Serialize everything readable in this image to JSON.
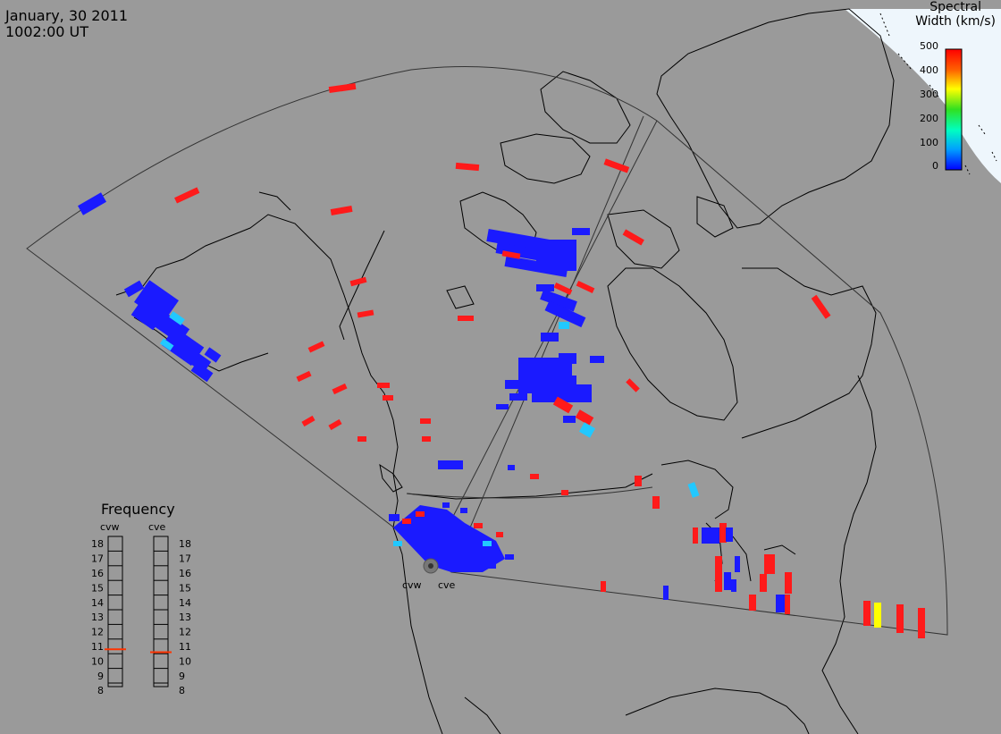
{
  "header": {
    "date": "January, 30 2011",
    "time": "1002:00 UT"
  },
  "colorbar": {
    "title_line1": "Spectral",
    "title_line2": "Width (km/s)",
    "ticks": [
      "500",
      "400",
      "300",
      "200",
      "100",
      "0"
    ]
  },
  "frequency_panel": {
    "title": "Frequency",
    "left_label": "cvw",
    "right_label": "cve",
    "levels": [
      "18",
      "17",
      "16",
      "15",
      "14",
      "13",
      "12",
      "11",
      "10",
      "9",
      "8"
    ],
    "cvw_value_mhz": 10.8,
    "cve_value_mhz": 10.6
  },
  "radar_sites": {
    "west": "cvw",
    "east": "cve"
  },
  "colors": {
    "background": "#9a9a9a",
    "polar_cap": "#e8f3fb",
    "low_width": "#1a1aff",
    "mid_width": "#22c8ff",
    "high_width": "#ff1a1a",
    "yellow_width": "#ffff00",
    "frequency_marker": "#ff3300"
  }
}
